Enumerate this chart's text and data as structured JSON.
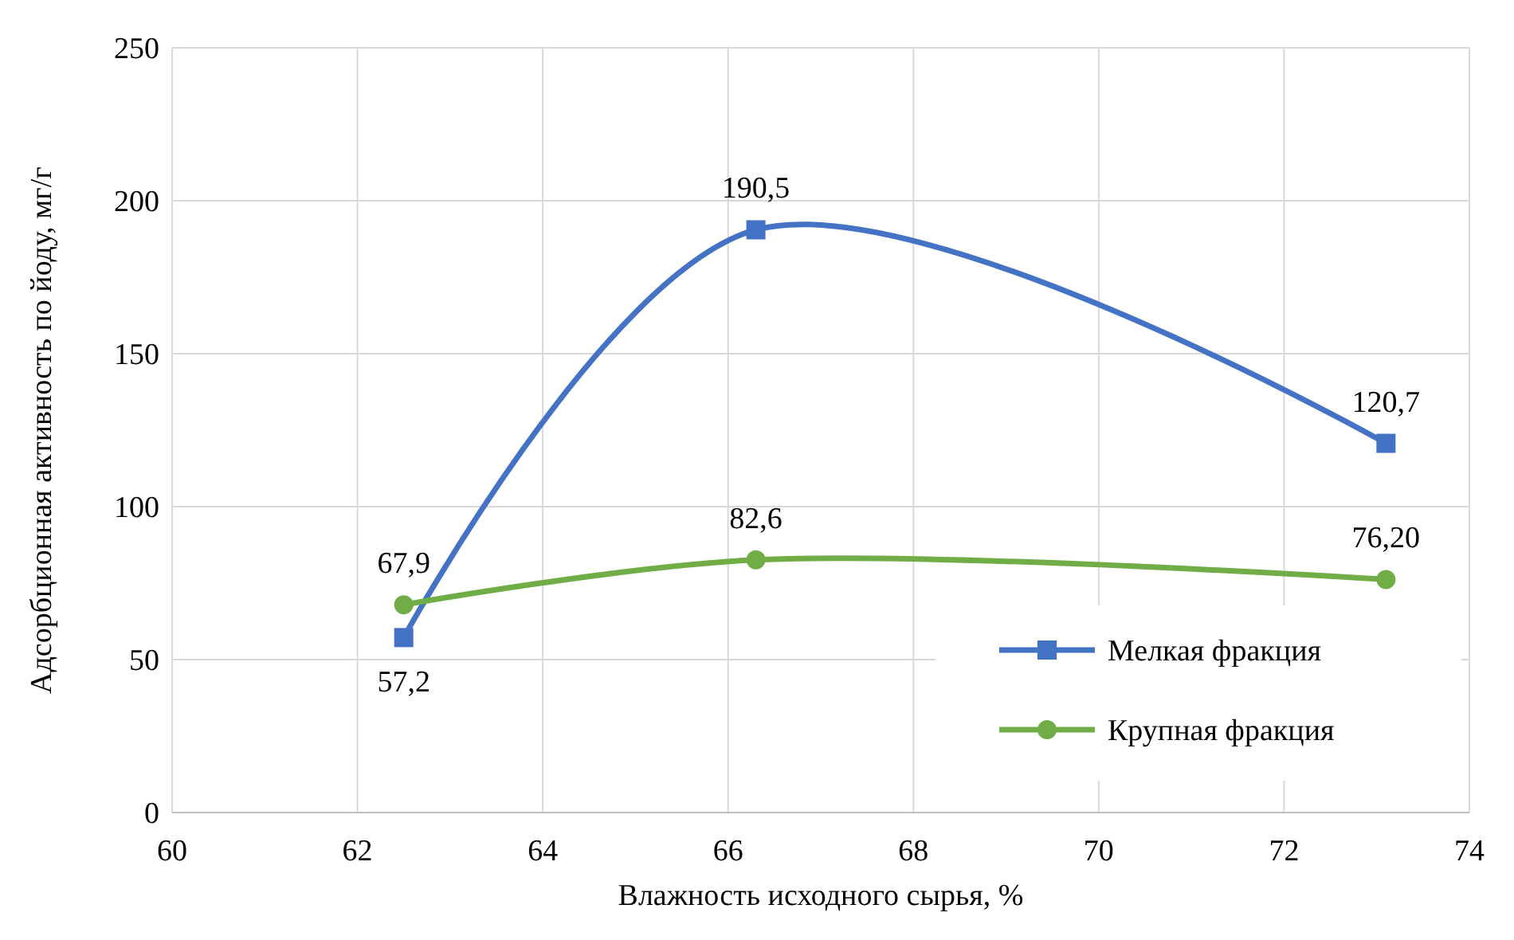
{
  "chart_data": {
    "type": "line",
    "xlabel": "Влажность исходного сырья, %",
    "ylabel": "Адсорбционная активность по йоду, мг/г",
    "xlim": [
      60,
      74
    ],
    "xticks": [
      60,
      62,
      64,
      66,
      68,
      70,
      72,
      74
    ],
    "ylim": [
      0,
      250
    ],
    "yticks": [
      0,
      50,
      100,
      150,
      200,
      250
    ],
    "grid": true,
    "legend": "bottom right",
    "x": [
      62.5,
      66.3,
      73.1
    ],
    "series": [
      {
        "name": "Мелкая фракция",
        "color": "#4472c4",
        "marker": "square",
        "values": [
          57.2,
          190.5,
          120.7
        ],
        "value_labels": [
          "57,2",
          "190,5",
          "120,7"
        ]
      },
      {
        "name": "Крупная фракция",
        "color": "#70ad47",
        "marker": "circle",
        "values": [
          67.9,
          82.6,
          76.2
        ],
        "value_labels": [
          "67,9",
          "82,6",
          "76,20"
        ]
      }
    ]
  }
}
